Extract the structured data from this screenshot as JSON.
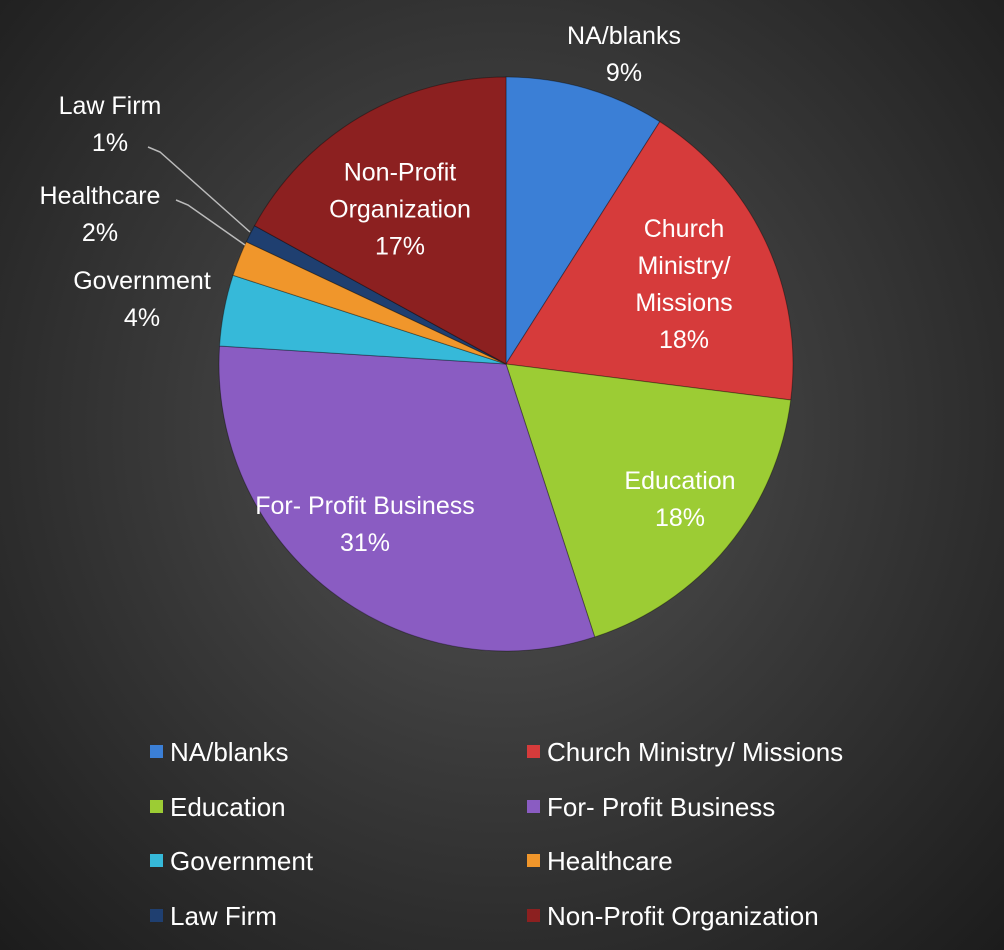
{
  "chart_data": {
    "type": "pie",
    "categories": [
      "NA/blanks",
      "Church Ministry/ Missions",
      "Education",
      "For- Profit Business",
      "Government",
      "Healthcare",
      "Law Firm",
      "Non-Profit Organization"
    ],
    "values": [
      9,
      18,
      18,
      31,
      4,
      2,
      1,
      17
    ],
    "value_labels": [
      "9%",
      "18%",
      "18%",
      "31%",
      "4%",
      "2%",
      "1%",
      "17%"
    ],
    "colors": [
      "#3b7fd6",
      "#d63b3b",
      "#9ccc34",
      "#8a5cc2",
      "#36b9d9",
      "#f0962b",
      "#1f3f70",
      "#8c2020"
    ],
    "legend": "bottom"
  }
}
